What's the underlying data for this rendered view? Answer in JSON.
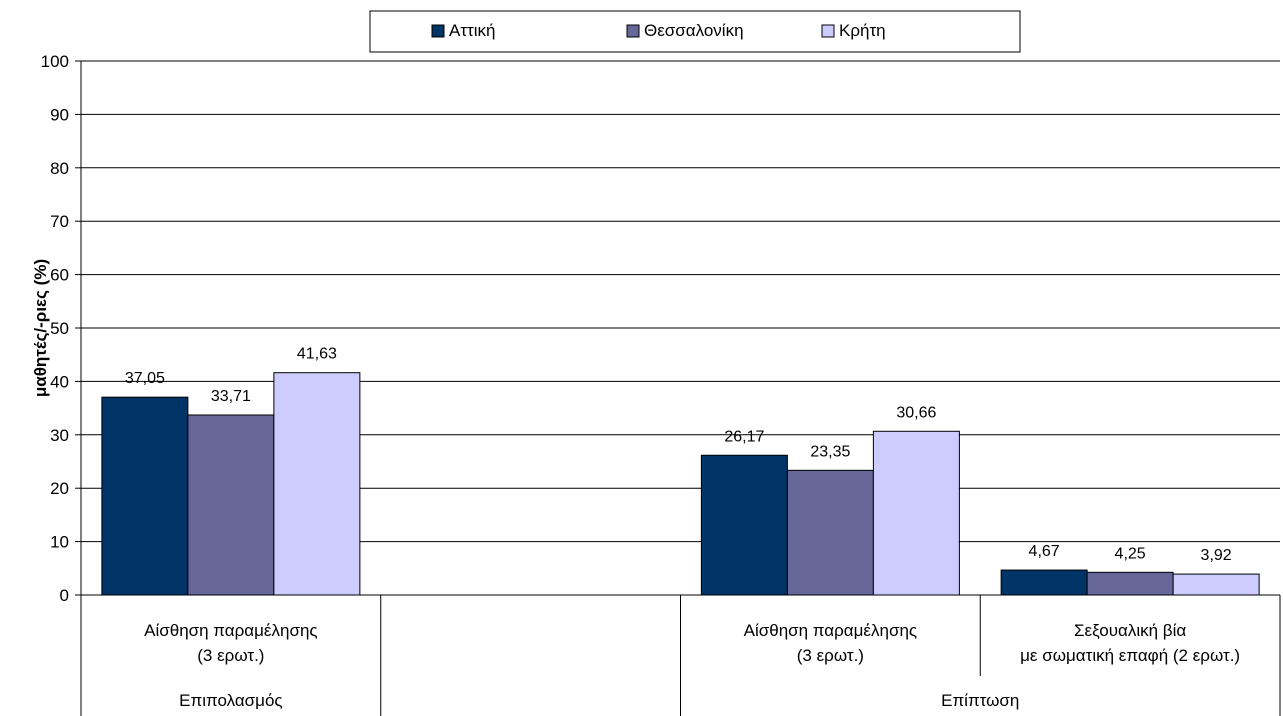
{
  "chart_data": {
    "type": "bar",
    "ylabel": "μαθητές/-ριες (%)",
    "ylim": [
      0,
      100
    ],
    "y_ticks": [
      0,
      10,
      20,
      30,
      40,
      50,
      60,
      70,
      80,
      90,
      100
    ],
    "grid": true,
    "legend_position": "top",
    "series": [
      {
        "name": "Αττική",
        "color": "#003366"
      },
      {
        "name": "Θεσσαλονίκη",
        "color": "#666699"
      },
      {
        "name": "Κρήτη",
        "color": "#CCCCFF"
      }
    ],
    "categories": [
      {
        "label_lines": [
          "Αίσθηση παραμέλησης",
          "(3 ερωτ.)"
        ],
        "group": "Επιπολασμός",
        "values": [
          37.05,
          33.71,
          41.63
        ],
        "labels": [
          "37,05",
          "33,71",
          "41,63"
        ]
      },
      {
        "label_lines": [],
        "group": "Επιπολασμός",
        "values": [],
        "labels": []
      },
      {
        "label_lines": [
          "Αίσθηση παραμέλησης",
          "(3 ερωτ.)"
        ],
        "group": "Επίπτωση",
        "values": [
          26.17,
          23.35,
          30.66
        ],
        "labels": [
          "26,17",
          "23,35",
          "30,66"
        ]
      },
      {
        "label_lines": [
          "Σεξουαλική βία",
          "με σωματική επαφή (2 ερωτ.)"
        ],
        "group": "Επίπτωση",
        "values": [
          4.67,
          4.25,
          3.92
        ],
        "labels": [
          "4,67",
          "4,25",
          "3,92"
        ]
      }
    ],
    "groups": [
      {
        "label": "Επιπολασμός",
        "span": [
          0,
          1
        ]
      },
      {
        "label": "Επίπτωση",
        "span": [
          2,
          4
        ]
      }
    ]
  }
}
